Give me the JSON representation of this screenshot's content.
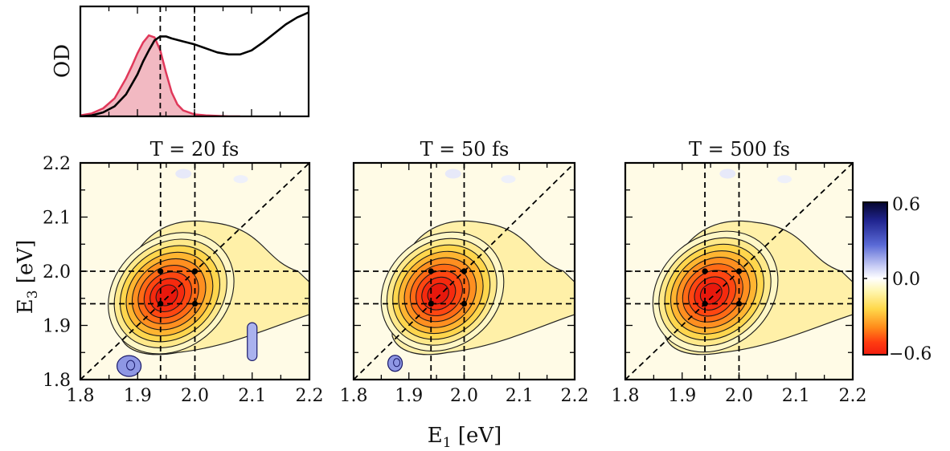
{
  "chart_data": [
    {
      "type": "line",
      "panel": "absorption",
      "ylabel": "OD",
      "xlim": [
        1.8,
        2.2
      ],
      "ticks_visible": false,
      "vlines": [
        1.94,
        2.0
      ],
      "series": [
        {
          "x": [
            1.8,
            1.82,
            1.84,
            1.86,
            1.88,
            1.9,
            1.91,
            1.92,
            1.93,
            1.94,
            1.95,
            1.96,
            1.98,
            2.0,
            2.02,
            2.04,
            2.06,
            2.08,
            2.1,
            2.12,
            2.14,
            2.16,
            2.18,
            2.2
          ],
          "y": [
            0.0,
            0.01,
            0.04,
            0.1,
            0.22,
            0.42,
            0.55,
            0.66,
            0.76,
            0.8,
            0.8,
            0.78,
            0.75,
            0.72,
            0.68,
            0.64,
            0.62,
            0.62,
            0.66,
            0.74,
            0.83,
            0.92,
            0.99,
            1.04
          ],
          "color": "#000000"
        },
        {
          "x": [
            1.8,
            1.82,
            1.84,
            1.86,
            1.88,
            1.89,
            1.9,
            1.91,
            1.92,
            1.93,
            1.94,
            1.95,
            1.96,
            1.97,
            1.98,
            2.0,
            2.02,
            2.04,
            2.06,
            2.08
          ],
          "y": [
            0.01,
            0.03,
            0.08,
            0.18,
            0.38,
            0.5,
            0.63,
            0.74,
            0.81,
            0.79,
            0.66,
            0.44,
            0.24,
            0.12,
            0.06,
            0.02,
            0.01,
            0.005,
            0.0,
            0.0
          ],
          "color": "#e0385a",
          "fill": "#f2b9c2"
        }
      ]
    },
    {
      "type": "heatmap",
      "title": "T = 20 fs",
      "xlabel": "E1 [eV]",
      "ylabel": "E3 [eV]",
      "xlim": [
        1.8,
        2.2
      ],
      "ylim": [
        1.8,
        2.2
      ],
      "xticks": [
        "1.8",
        "1.9",
        "2.0",
        "2.1",
        "2.2"
      ],
      "yticks": [
        "1.8",
        "1.9",
        "2.0",
        "2.1",
        "2.2"
      ],
      "peak_center": [
        1.95,
        1.955
      ],
      "peak_amplitude": -0.6,
      "negative_features": [
        [
          1.885,
          1.825
        ],
        [
          2.1,
          1.875
        ]
      ],
      "marked_points": [
        [
          1.94,
          1.94
        ],
        [
          1.94,
          2.0
        ],
        [
          2.0,
          1.94
        ],
        [
          2.0,
          2.0
        ]
      ],
      "reference_lines": [
        1.94,
        2.0
      ]
    },
    {
      "type": "heatmap",
      "title": "T = 50 fs",
      "xlabel": "E1 [eV]",
      "xlim": [
        1.8,
        2.2
      ],
      "ylim": [
        1.8,
        2.2
      ],
      "xticks": [
        "1.8",
        "1.9",
        "2.0",
        "2.1",
        "2.2"
      ],
      "peak_center": [
        1.952,
        1.958
      ],
      "peak_amplitude": -0.6,
      "negative_features": [
        [
          1.875,
          1.83
        ]
      ],
      "marked_points": [
        [
          1.94,
          1.94
        ],
        [
          1.94,
          2.0
        ],
        [
          2.0,
          1.94
        ],
        [
          2.0,
          2.0
        ]
      ],
      "reference_lines": [
        1.94,
        2.0
      ]
    },
    {
      "type": "heatmap",
      "title": "T = 500 fs",
      "xlabel": "E1 [eV]",
      "xlim": [
        1.8,
        2.2
      ],
      "ylim": [
        1.8,
        2.2
      ],
      "xticks": [
        "1.8",
        "1.9",
        "2.0",
        "2.1",
        "2.2"
      ],
      "peak_center": [
        1.95,
        1.958
      ],
      "peak_amplitude": -0.6,
      "negative_features": [],
      "marked_points": [
        [
          1.94,
          1.94
        ],
        [
          1.94,
          2.0
        ],
        [
          2.0,
          1.94
        ],
        [
          2.0,
          2.0
        ]
      ],
      "reference_lines": [
        1.94,
        2.0
      ]
    }
  ],
  "labels": {
    "od": "OD",
    "e3_main": "E",
    "e3_sub": "3",
    "e3_unit": " [eV]",
    "e1_main": "E",
    "e1_sub": "1",
    "e1_unit": " [eV]",
    "title_20": "T = 20 fs",
    "title_50": "T = 50 fs",
    "title_500": "T = 500 fs"
  },
  "ticks": [
    "1.8",
    "1.9",
    "2.0",
    "2.1",
    "2.2"
  ],
  "colorbar": {
    "min": -0.6,
    "max": 0.6,
    "ticks": [
      "0.6",
      "0.0",
      "−0.6"
    ],
    "colors": [
      "#05052e",
      "#20248f",
      "#5a6ad6",
      "#c8cdf5",
      "#ffffff",
      "#fff7b3",
      "#ffd84a",
      "#ff8c1a",
      "#ff3b10",
      "#f21d0f"
    ]
  }
}
